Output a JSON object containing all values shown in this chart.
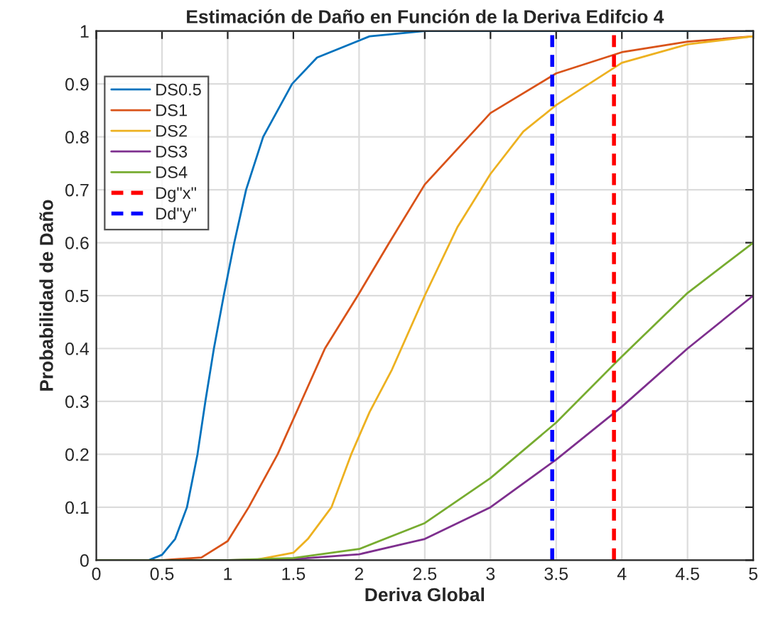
{
  "chart_data": {
    "type": "line",
    "title": "Estimación de Daño en Función de la Deriva Edifcio 4",
    "xlabel": "Deriva Global",
    "ylabel": "Probabilidad de Daño",
    "xlim": [
      0,
      5
    ],
    "ylim": [
      0,
      1
    ],
    "xticks": [
      0,
      0.5,
      1,
      1.5,
      2,
      2.5,
      3,
      3.5,
      4,
      4.5,
      5
    ],
    "yticks": [
      0,
      0.1,
      0.2,
      0.3,
      0.4,
      0.5,
      0.6,
      0.7,
      0.8,
      0.9,
      1
    ],
    "grid": true,
    "legend": "top left",
    "marker": "none",
    "series": [
      {
        "name": "DS0.5",
        "color": "#0072bd",
        "line_style": "solid",
        "x": [
          0,
          0.4,
          0.5,
          0.6,
          0.69,
          0.77,
          0.83,
          0.895,
          0.97,
          1.05,
          1.14,
          1.27,
          1.49,
          1.68,
          2.08,
          2.5,
          5
        ],
        "values": [
          0,
          0,
          0.01,
          0.04,
          0.1,
          0.2,
          0.3,
          0.4,
          0.5,
          0.6,
          0.7,
          0.8,
          0.9,
          0.95,
          0.99,
          1,
          1
        ]
      },
      {
        "name": "DS1",
        "color": "#d95319",
        "line_style": "solid",
        "x": [
          0,
          0.5,
          0.8,
          1,
          1.16,
          1.38,
          1.56,
          1.74,
          1.99,
          2.23,
          2.5,
          3,
          3.5,
          4,
          4.5,
          5
        ],
        "values": [
          0,
          0,
          0.005,
          0.036,
          0.1,
          0.2,
          0.3,
          0.4,
          0.5,
          0.6,
          0.71,
          0.845,
          0.92,
          0.96,
          0.98,
          0.99
        ]
      },
      {
        "name": "DS2",
        "color": "#edb120",
        "line_style": "solid",
        "x": [
          0,
          1.2,
          1.5,
          1.61,
          1.79,
          1.94,
          2.08,
          2.25,
          2.5,
          2.75,
          3,
          3.25,
          3.5,
          4,
          4.5,
          5
        ],
        "values": [
          0,
          0,
          0.014,
          0.04,
          0.1,
          0.2,
          0.28,
          0.36,
          0.5,
          0.63,
          0.73,
          0.81,
          0.86,
          0.94,
          0.975,
          0.99
        ]
      },
      {
        "name": "DS3",
        "color": "#7e2f8e",
        "line_style": "solid",
        "x": [
          0,
          1,
          1.5,
          2,
          2.5,
          3,
          3.5,
          4,
          4.5,
          5
        ],
        "values": [
          0,
          0,
          0.002,
          0.011,
          0.04,
          0.1,
          0.19,
          0.29,
          0.4,
          0.5
        ]
      },
      {
        "name": "DS4",
        "color": "#77ac30",
        "line_style": "solid",
        "x": [
          0,
          1,
          1.5,
          2,
          2.5,
          3,
          3.5,
          4,
          4.5,
          5
        ],
        "values": [
          0,
          0,
          0.004,
          0.021,
          0.07,
          0.155,
          0.26,
          0.385,
          0.505,
          0.6
        ]
      },
      {
        "name": "Dg\"x\"",
        "color": "#ff0000",
        "line_style": "dashed",
        "x": [
          3.94,
          3.94
        ],
        "values": [
          0,
          1
        ]
      },
      {
        "name": "Dd\"y\"",
        "color": "#0000ff",
        "line_style": "dashed",
        "x": [
          3.47,
          3.47
        ],
        "values": [
          0,
          1
        ]
      }
    ]
  }
}
